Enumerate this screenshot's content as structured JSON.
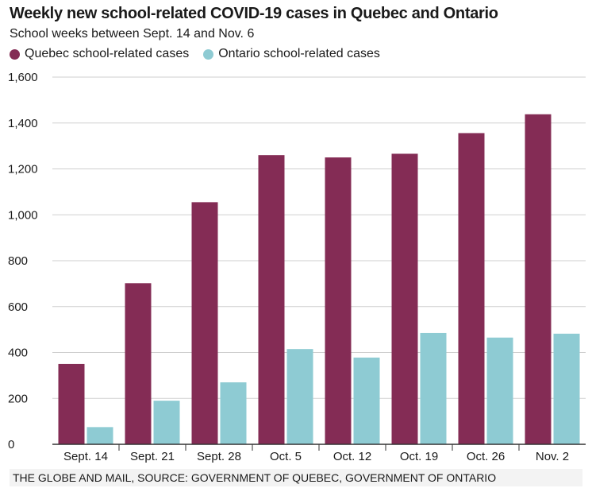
{
  "chart_data": {
    "type": "bar",
    "title": "Weekly new school-related COVID-19 cases in Quebec and Ontario",
    "subtitle": "School weeks between Sept. 14 and Nov. 6",
    "categories": [
      "Sept. 14",
      "Sept. 21",
      "Sept. 28",
      "Oct. 5",
      "Oct. 12",
      "Oct. 19",
      "Oct. 26",
      "Nov. 2"
    ],
    "series": [
      {
        "name": "Quebec school-related cases",
        "color": "#842c55",
        "values": [
          350,
          702,
          1055,
          1260,
          1250,
          1266,
          1356,
          1438
        ]
      },
      {
        "name": "Ontario school-related cases",
        "color": "#8ecbd3",
        "values": [
          75,
          190,
          270,
          415,
          378,
          485,
          465,
          482
        ]
      }
    ],
    "ylim": [
      0,
      1600
    ],
    "yticks": [
      0,
      200,
      400,
      600,
      800,
      1000,
      1200,
      1400,
      1600
    ],
    "ytick_labels": [
      "0",
      "200",
      "400",
      "600",
      "800",
      "1,000",
      "1,200",
      "1,400",
      "1,600"
    ],
    "xlabel": "",
    "ylabel": "",
    "grid": true,
    "legend": "top-left",
    "source": "THE GLOBE AND MAIL, SOURCE: GOVERNMENT OF QUEBEC, GOVERNMENT OF ONTARIO"
  }
}
